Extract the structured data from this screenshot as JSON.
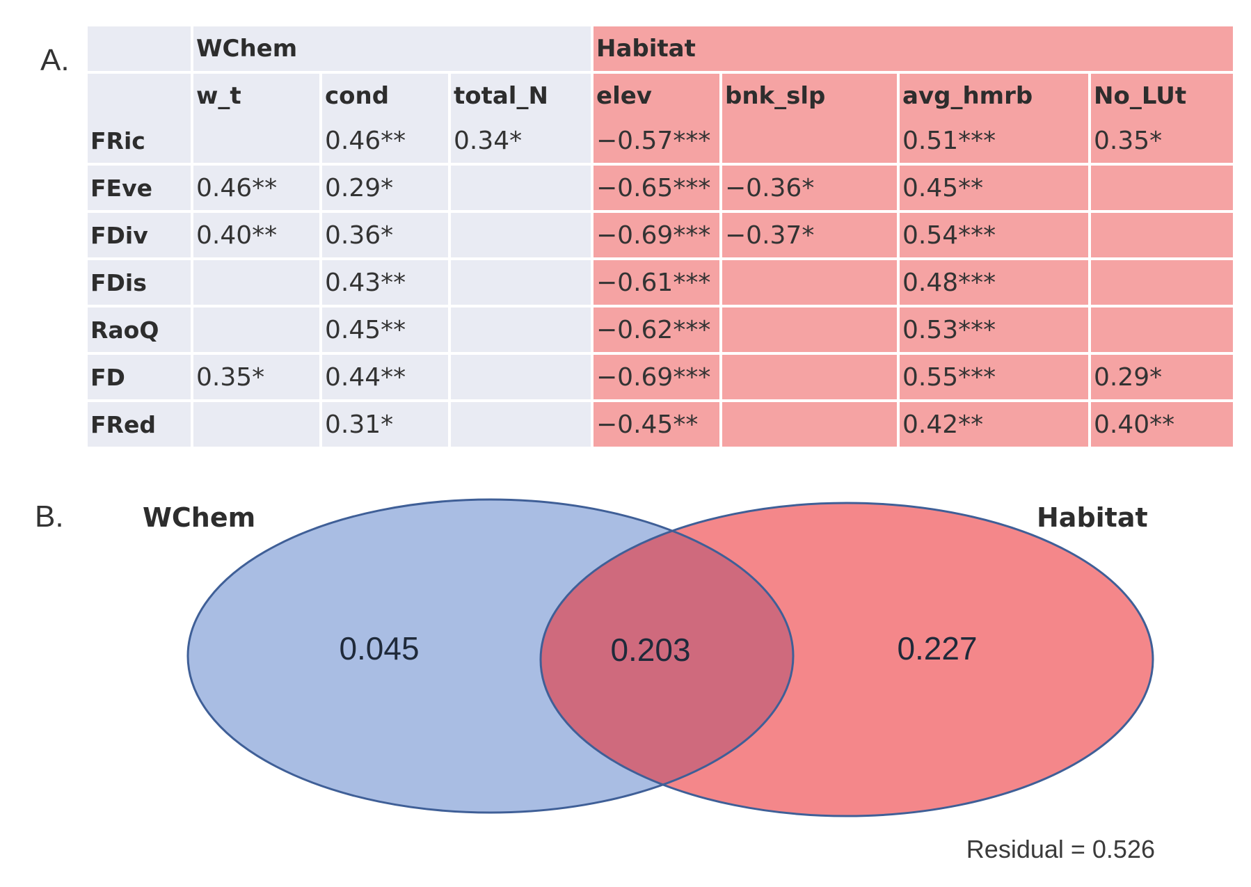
{
  "panel_a": {
    "label": "A.",
    "group_headers": {
      "wchem": "WChem",
      "habitat": "Habitat"
    },
    "columns": [
      "w_t",
      "cond",
      "total_N",
      "elev",
      "bnk_slp",
      "avg_hmrb",
      "No_LUt"
    ],
    "rows": [
      {
        "name": "FRic",
        "cells": [
          "",
          "0.46**",
          "0.34*",
          "−0.57***",
          "",
          "0.51***",
          "0.35*"
        ]
      },
      {
        "name": "FEve",
        "cells": [
          "0.46**",
          "0.29*",
          "",
          "−0.65***",
          "−0.36*",
          "0.45**",
          ""
        ]
      },
      {
        "name": "FDiv",
        "cells": [
          "0.40**",
          "0.36*",
          "",
          "−0.69***",
          "−0.37*",
          "0.54***",
          ""
        ]
      },
      {
        "name": "FDis",
        "cells": [
          "",
          "0.43**",
          "",
          "−0.61***",
          "",
          "0.48***",
          ""
        ]
      },
      {
        "name": "RaoQ",
        "cells": [
          "",
          "0.45**",
          "",
          "−0.62***",
          "",
          "0.53***",
          ""
        ]
      },
      {
        "name": "FD",
        "cells": [
          "0.35*",
          "0.44**",
          "",
          "−0.69***",
          "",
          "0.55***",
          "0.29*"
        ]
      },
      {
        "name": "FRed",
        "cells": [
          "",
          "0.31*",
          "",
          "−0.45**",
          "",
          "0.42**",
          "0.40**"
        ]
      }
    ],
    "colors": {
      "wchem_bg": "#e9ebf3",
      "habitat_bg": "#f5a3a3"
    }
  },
  "panel_b": {
    "label": "B.",
    "set_labels": {
      "wchem": "WChem",
      "habitat": "Habitat"
    },
    "values": {
      "wchem_only": "0.045",
      "shared": "0.203",
      "habitat_only": "0.227"
    },
    "residual": "Residual = 0.526",
    "colors": {
      "wchem_fill": "#a9bde3",
      "habitat_fill": "#f4878a",
      "overlap_fill": "#cf6a7d",
      "stroke": "#3f5f97"
    }
  }
}
